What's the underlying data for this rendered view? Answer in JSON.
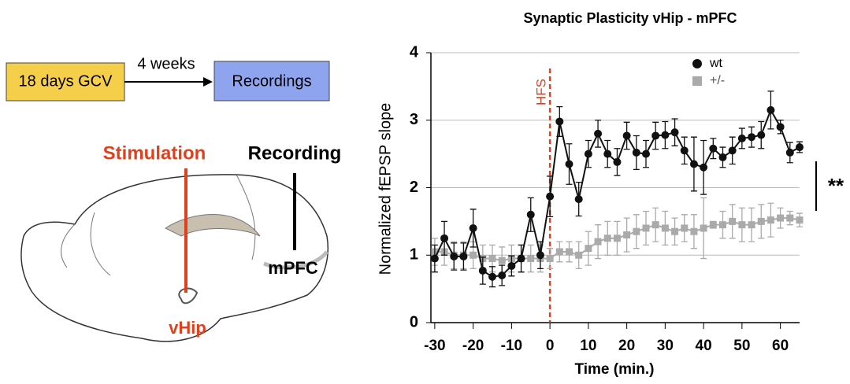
{
  "diagram": {
    "step1": "18 days GCV",
    "interval": "4 weeks",
    "step2": "Recordings",
    "stimulation": "Stimulation",
    "recording": "Recording",
    "region_rec": "mPFC",
    "region_stim": "vHip"
  },
  "chart_data": {
    "type": "line",
    "title": "Synaptic Plasticity vHip - mPFC",
    "x_label": "Time (min.)",
    "y_label": "Normalized fEPSP slope",
    "x": [
      -30,
      -27.5,
      -25,
      -22.5,
      -20,
      -17.5,
      -15,
      -12.5,
      -10,
      -7.5,
      -5,
      -2.5,
      0,
      2.5,
      5,
      7.5,
      10,
      12.5,
      15,
      17.5,
      20,
      22.5,
      25,
      27.5,
      30,
      32.5,
      35,
      37.5,
      40,
      42.5,
      45,
      47.5,
      50,
      52.5,
      55,
      57.5,
      60,
      62.5,
      65
    ],
    "series": [
      {
        "name": "wt",
        "color": "#111111",
        "marker": "circle",
        "values": [
          0.95,
          1.25,
          0.98,
          0.98,
          1.4,
          0.77,
          0.68,
          0.7,
          0.84,
          0.95,
          1.6,
          1.0,
          1.87,
          2.98,
          2.35,
          1.83,
          2.5,
          2.8,
          2.5,
          2.38,
          2.77,
          2.52,
          2.5,
          2.77,
          2.78,
          2.82,
          2.55,
          2.35,
          2.3,
          2.58,
          2.45,
          2.55,
          2.73,
          2.75,
          2.78,
          3.15,
          2.9,
          2.52,
          2.6
        ],
        "errors": [
          0.2,
          0.25,
          0.2,
          0.2,
          0.28,
          0.2,
          0.15,
          0.15,
          0.15,
          0.2,
          0.25,
          0.2,
          0.3,
          0.22,
          0.3,
          0.25,
          0.2,
          0.2,
          0.2,
          0.2,
          0.2,
          0.25,
          0.2,
          0.2,
          0.2,
          0.2,
          0.2,
          0.4,
          0.4,
          0.15,
          0.15,
          0.2,
          0.15,
          0.15,
          0.2,
          0.28,
          0.1,
          0.15,
          0.08
        ]
      },
      {
        "name": "+/-",
        "color": "#aaaaaa",
        "marker": "square",
        "values": [
          1.05,
          1.05,
          1.0,
          1.0,
          1.0,
          0.95,
          0.95,
          0.92,
          0.95,
          0.95,
          0.95,
          0.95,
          0.95,
          1.05,
          1.05,
          1.0,
          1.1,
          1.2,
          1.25,
          1.25,
          1.3,
          1.35,
          1.4,
          1.45,
          1.4,
          1.35,
          1.4,
          1.35,
          1.4,
          1.45,
          1.45,
          1.5,
          1.45,
          1.45,
          1.5,
          1.52,
          1.55,
          1.55,
          1.52
        ],
        "errors": [
          0.2,
          0.2,
          0.2,
          0.2,
          0.2,
          0.2,
          0.2,
          0.2,
          0.2,
          0.2,
          0.2,
          0.2,
          0.15,
          0.15,
          0.15,
          0.2,
          0.25,
          0.25,
          0.25,
          0.25,
          0.25,
          0.25,
          0.25,
          0.25,
          0.25,
          0.2,
          0.2,
          0.25,
          0.45,
          0.05,
          0.2,
          0.25,
          0.25,
          0.25,
          0.25,
          0.25,
          0.15,
          0.1,
          0.1
        ]
      }
    ],
    "xlim": [
      -31,
      65
    ],
    "ylim": [
      0,
      4
    ],
    "xticks": [
      -30,
      -20,
      -10,
      0,
      10,
      20,
      30,
      40,
      50,
      60
    ],
    "yticks": [
      0,
      1,
      2,
      3,
      4
    ],
    "grid": true,
    "legend": "top-right",
    "annotations": [
      {
        "text": "HFS",
        "x": 0,
        "color": "#e0401c"
      }
    ],
    "significance": "**"
  }
}
